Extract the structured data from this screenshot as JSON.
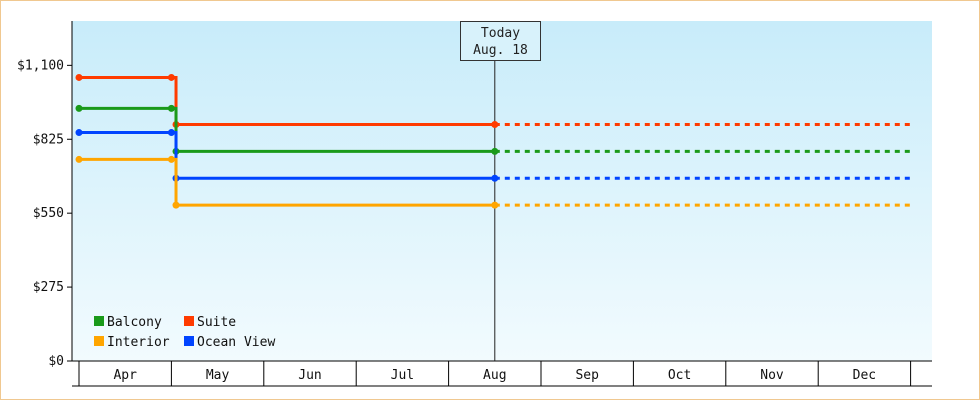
{
  "chart_data": {
    "type": "line",
    "step": true,
    "ylim": [
      0,
      1265
    ],
    "yticks": [
      {
        "value": 0,
        "label": "$0"
      },
      {
        "value": 275,
        "label": "$275"
      },
      {
        "value": 550,
        "label": "$550"
      },
      {
        "value": 825,
        "label": "$825"
      },
      {
        "value": 1100,
        "label": "$1,100"
      }
    ],
    "x_categories": [
      "Apr",
      "May",
      "Jun",
      "Jul",
      "Aug",
      "Sep",
      "Oct",
      "Nov",
      "Dec"
    ],
    "today": {
      "label_line1": "Today",
      "label_line2": "Aug. 18",
      "x": 4.5
    },
    "series": [
      {
        "name": "Suite",
        "color": "#ff3b00",
        "points": [
          [
            0,
            1055
          ],
          [
            1.0,
            1055
          ],
          [
            1.05,
            880
          ],
          [
            4.5,
            880
          ]
        ],
        "forecast_end": 9.0
      },
      {
        "name": "Balcony",
        "color": "#1a9a1a",
        "points": [
          [
            0,
            940
          ],
          [
            1.0,
            940
          ],
          [
            1.05,
            780
          ],
          [
            4.5,
            780
          ]
        ],
        "forecast_end": 9.0
      },
      {
        "name": "Ocean View",
        "color": "#0044ff",
        "points": [
          [
            0,
            850
          ],
          [
            1.0,
            850
          ],
          [
            1.05,
            680
          ],
          [
            4.5,
            680
          ]
        ],
        "forecast_end": 9.0
      },
      {
        "name": "Interior",
        "color": "#ffa500",
        "points": [
          [
            0,
            750
          ],
          [
            1.0,
            750
          ],
          [
            1.05,
            580
          ],
          [
            4.5,
            580
          ]
        ],
        "forecast_end": 9.0
      }
    ],
    "legend": {
      "placement": "bottom-left",
      "order": [
        "Balcony",
        "Suite",
        "Interior",
        "Ocean View"
      ]
    }
  }
}
